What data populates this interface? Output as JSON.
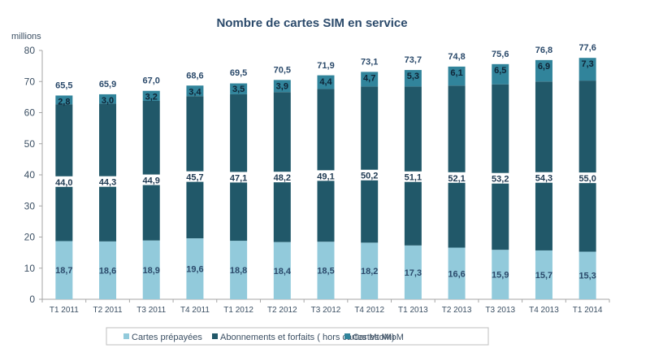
{
  "chart_data": {
    "type": "bar",
    "stacked": true,
    "title": "Nombre de cartes SIM en service",
    "ylabel": "millions",
    "xlabel": "",
    "ylim": [
      0,
      80
    ],
    "yticks": [
      0,
      10,
      20,
      30,
      40,
      50,
      60,
      70,
      80
    ],
    "grid": false,
    "legend_position": "bottom",
    "categories": [
      "T1 2011",
      "T2 2011",
      "T3 2011",
      "T4 2011",
      "T1 2012",
      "T2 2012",
      "T3 2012",
      "T4 2012",
      "T1 2013",
      "T2 2013",
      "T3 2013",
      "T4 2013",
      "T1 2014"
    ],
    "series": [
      {
        "name": "Cartes prépayées",
        "color": "#92cadb",
        "values": [
          18.7,
          18.6,
          18.9,
          19.6,
          18.8,
          18.4,
          18.5,
          18.2,
          17.3,
          16.6,
          15.9,
          15.7,
          15.3
        ],
        "labels": [
          "18,7",
          "18,6",
          "18,9",
          "19,6",
          "18,8",
          "18,4",
          "18,5",
          "18,2",
          "17,3",
          "16,6",
          "15,9",
          "15,7",
          "15,3"
        ]
      },
      {
        "name": "Abonnements et forfaits ( hors cartes MtoM)",
        "color": "#215869",
        "values": [
          44.0,
          44.3,
          44.9,
          45.7,
          47.1,
          48.2,
          49.1,
          50.2,
          51.1,
          52.1,
          53.2,
          54.3,
          55.0
        ],
        "labels": [
          "44,0",
          "44,3",
          "44,9",
          "45,7",
          "47,1",
          "48,2",
          "49,1",
          "50,2",
          "51,1",
          "52,1",
          "53,2",
          "54,3",
          "55,0"
        ]
      },
      {
        "name": "Cartes MtoM",
        "color": "#31849b",
        "values": [
          2.8,
          3.0,
          3.2,
          3.4,
          3.5,
          3.9,
          4.4,
          4.7,
          5.3,
          6.1,
          6.5,
          6.9,
          7.3
        ],
        "labels": [
          "2,8",
          "3,0",
          "3,2",
          "3,4",
          "3,5",
          "3,9",
          "4,4",
          "4,7",
          "5,3",
          "6,1",
          "6,5",
          "6,9",
          "7,3"
        ]
      }
    ],
    "totals": [
      65.5,
      65.9,
      67.0,
      68.6,
      69.5,
      70.5,
      71.9,
      73.1,
      73.7,
      74.8,
      75.6,
      76.8,
      77.6
    ],
    "total_labels": [
      "65,5",
      "65,9",
      "67,0",
      "68,6",
      "69,5",
      "70,5",
      "71,9",
      "73,1",
      "73,7",
      "74,8",
      "75,6",
      "76,8",
      "77,6"
    ]
  }
}
